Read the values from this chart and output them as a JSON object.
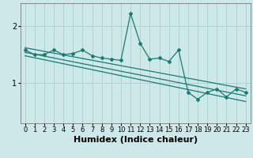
{
  "title": "",
  "xlabel": "Humidex (Indice chaleur)",
  "ylabel": "",
  "bg_color": "#cce8e8",
  "grid_color": "#aad0d0",
  "line_color": "#1a7a6e",
  "xlim": [
    -0.5,
    23.5
  ],
  "ylim": [
    0.3,
    2.4
  ],
  "yticks": [
    1,
    2
  ],
  "xticks": [
    0,
    1,
    2,
    3,
    4,
    5,
    6,
    7,
    8,
    9,
    10,
    11,
    12,
    13,
    14,
    15,
    16,
    17,
    18,
    19,
    20,
    21,
    22,
    23
  ],
  "main_x": [
    0,
    1,
    2,
    3,
    4,
    5,
    6,
    7,
    8,
    9,
    10,
    11,
    12,
    13,
    14,
    15,
    16,
    17,
    18,
    19,
    20,
    21,
    22,
    23
  ],
  "main_y": [
    1.58,
    1.5,
    1.5,
    1.58,
    1.5,
    1.52,
    1.58,
    1.48,
    1.44,
    1.42,
    1.4,
    2.22,
    1.7,
    1.42,
    1.44,
    1.38,
    1.58,
    0.84,
    0.72,
    0.84,
    0.9,
    0.76,
    0.9,
    0.84
  ],
  "line1_x": [
    0,
    23
  ],
  "line1_y": [
    1.62,
    0.9
  ],
  "line2_x": [
    0,
    23
  ],
  "line2_y": [
    1.54,
    0.78
  ],
  "line3_x": [
    0,
    23
  ],
  "line3_y": [
    1.48,
    0.68
  ],
  "font_size_xlabel": 8,
  "tick_fontsize": 7,
  "xlabel_fontsize": 8
}
